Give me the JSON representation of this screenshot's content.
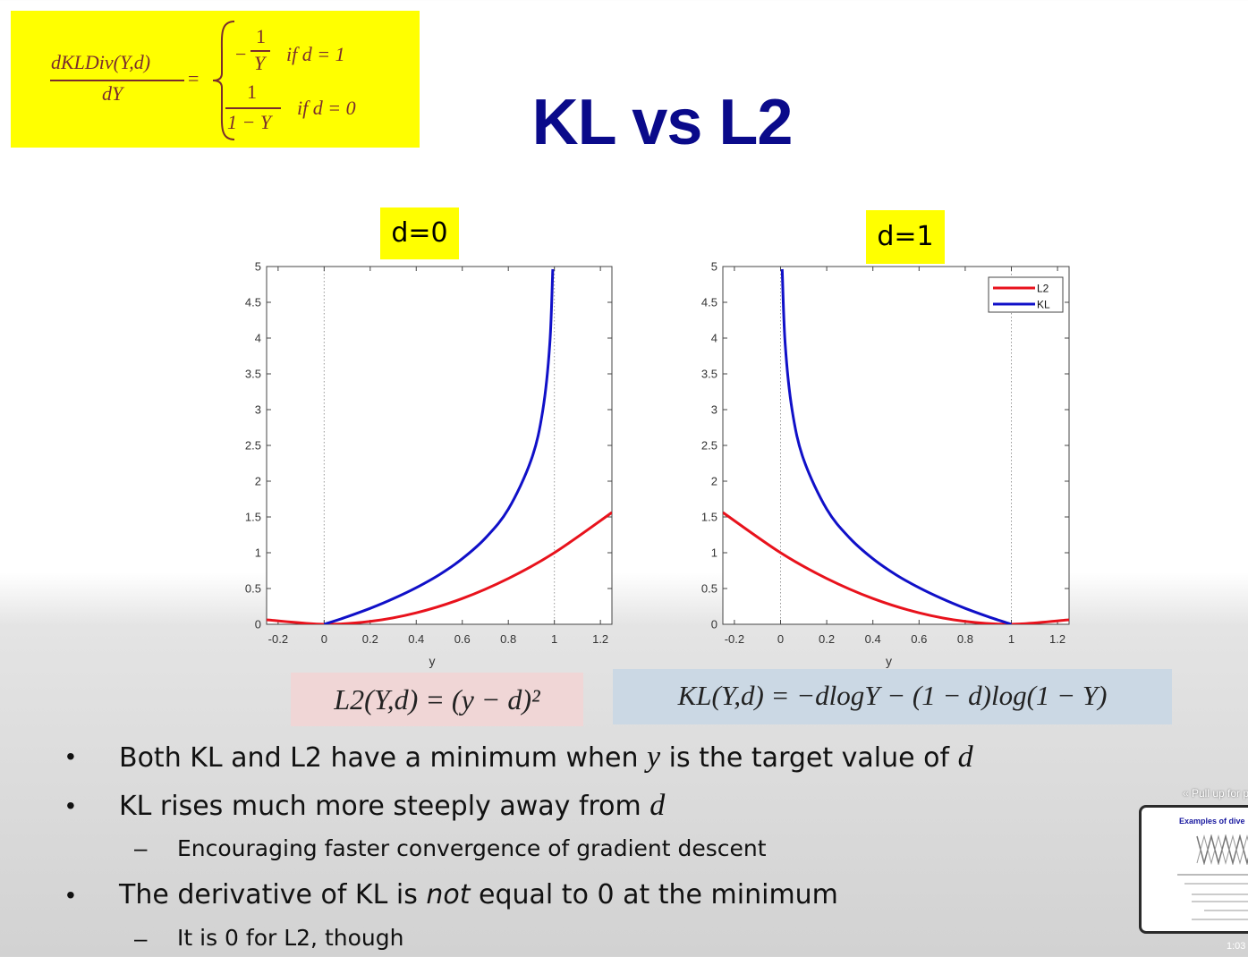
{
  "formula": {
    "lhs_num": "dKLDiv(Y,d)",
    "lhs_den": "dY",
    "eq": "=",
    "case1_num": "1",
    "case1_den": "Y",
    "case1_sign": "−",
    "case1_cond": "if  d = 1",
    "case2_num": "1",
    "case2_den": "1 − Y",
    "case2_cond": "if d = 0"
  },
  "title": "KL vs L2",
  "plots": {
    "left_label": "d=0",
    "right_label": "d=1",
    "xlabel": "y",
    "legend": [
      "L2",
      "KL"
    ]
  },
  "chart_data": [
    {
      "type": "line",
      "title": "d=0",
      "xlabel": "y",
      "ylabel": "",
      "xlim": [
        -0.25,
        1.25
      ],
      "ylim": [
        0,
        5
      ],
      "xticks": [
        "-0.2",
        "0",
        "0.2",
        "0.4",
        "0.6",
        "0.8",
        "1",
        "1.2"
      ],
      "yticks": [
        "0",
        "0.5",
        "1",
        "1.5",
        "2",
        "2.5",
        "3",
        "3.5",
        "4",
        "4.5",
        "5"
      ],
      "vlines": [
        0,
        1
      ],
      "series": [
        {
          "name": "L2",
          "color": "#e8121c",
          "x": [
            -0.25,
            0,
            0.2,
            0.4,
            0.6,
            0.8,
            1.0,
            1.25
          ],
          "y": [
            0.0625,
            0,
            0.04,
            0.16,
            0.36,
            0.64,
            1.0,
            1.5625
          ]
        },
        {
          "name": "KL",
          "color": "#1010c8",
          "x": [
            0,
            0.1,
            0.2,
            0.3,
            0.4,
            0.5,
            0.6,
            0.7,
            0.8,
            0.9,
            0.95,
            0.98,
            0.993
          ],
          "y": [
            0,
            0.105,
            0.223,
            0.357,
            0.511,
            0.693,
            0.916,
            1.204,
            1.609,
            2.303,
            2.996,
            3.912,
            4.962
          ]
        }
      ]
    },
    {
      "type": "line",
      "title": "d=1",
      "xlabel": "y",
      "ylabel": "",
      "xlim": [
        -0.25,
        1.25
      ],
      "ylim": [
        0,
        5
      ],
      "xticks": [
        "-0.2",
        "0",
        "0.2",
        "0.4",
        "0.6",
        "0.8",
        "1",
        "1.2"
      ],
      "yticks": [
        "0",
        "0.5",
        "1",
        "1.5",
        "2",
        "2.5",
        "3",
        "3.5",
        "4",
        "4.5",
        "5"
      ],
      "vlines": [
        0,
        1
      ],
      "legend_position": "top-right",
      "series": [
        {
          "name": "L2",
          "color": "#e8121c",
          "x": [
            -0.25,
            0,
            0.2,
            0.4,
            0.6,
            0.8,
            1.0,
            1.25
          ],
          "y": [
            1.5625,
            1.0,
            0.64,
            0.36,
            0.16,
            0.04,
            0,
            0.0625
          ]
        },
        {
          "name": "KL",
          "color": "#1010c8",
          "x": [
            0.007,
            0.02,
            0.05,
            0.1,
            0.2,
            0.3,
            0.4,
            0.5,
            0.6,
            0.7,
            0.8,
            0.9,
            1.0
          ],
          "y": [
            4.962,
            3.912,
            2.996,
            2.303,
            1.609,
            1.204,
            0.916,
            0.693,
            0.511,
            0.357,
            0.223,
            0.105,
            0
          ]
        }
      ]
    }
  ],
  "equations": {
    "l2": "L2(Y,d) = (y − d)²",
    "kl": "KL(Y,d) = −dlogY − (1 − d)log(1 − Y)"
  },
  "bullets": {
    "b1_a": "Both KL and L2 have a minimum when ",
    "b1_y": "y",
    "b1_b": " is the target value of ",
    "b1_d": "d",
    "b2_a": "KL rises much more steeply away from ",
    "b2_d": "d",
    "s1": "Encouraging faster convergence of gradient descent",
    "b3_a": "The derivative of KL is ",
    "b3_not": "not",
    "b3_b": " equal to 0 at the minimum",
    "s2": "It is 0 for L2, though",
    "bullet_mark": "•",
    "dash_mark": "–"
  },
  "overlay": {
    "pull_up": "« Pull up for p",
    "thumb_title": "Examples of dive",
    "time": "1:03"
  },
  "colors": {
    "accent_yellow": "#ffff00",
    "title_blue": "#0a0a8a",
    "l2_red": "#e8121c",
    "kl_blue": "#1010c8",
    "formula_text": "#7a2d2d"
  }
}
